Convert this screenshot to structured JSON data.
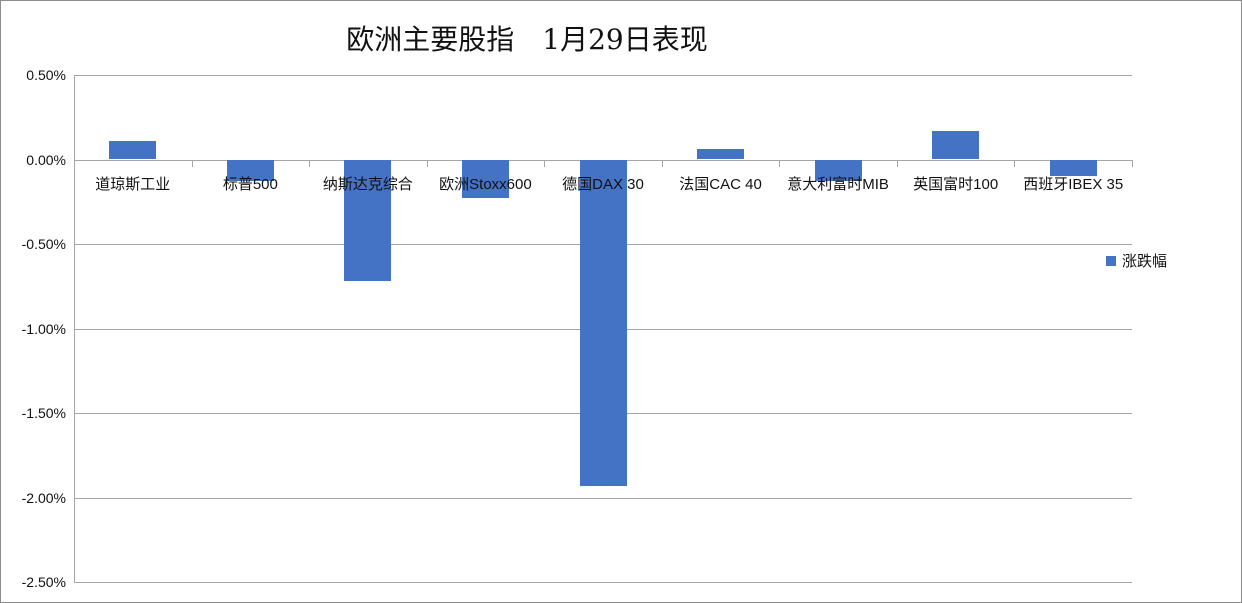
{
  "chart_data": {
    "type": "bar",
    "title": "欧洲主要股指　1月29日表现",
    "xlabel": "",
    "ylabel": "",
    "ylim": [
      -0.025,
      0.005
    ],
    "yticks": [
      "0.50%",
      "0.00%",
      "-0.50%",
      "-1.00%",
      "-1.50%",
      "-2.00%",
      "-2.50%"
    ],
    "grid": true,
    "legend_position": "right",
    "categories": [
      "道琼斯工业",
      "标普500",
      "纳斯达克综合",
      "欧洲Stoxx600",
      "德国DAX 30",
      "法国CAC 40",
      "意大利富时MIB",
      "英国富时100",
      "西班牙IBEX 35"
    ],
    "series": [
      {
        "name": "涨跌幅",
        "color": "#4472c4",
        "values": [
          0.0011,
          -0.0013,
          -0.0072,
          -0.0023,
          -0.0193,
          0.0006,
          -0.0013,
          0.0017,
          -0.001
        ]
      }
    ]
  },
  "legend": {
    "label": "涨跌幅"
  }
}
